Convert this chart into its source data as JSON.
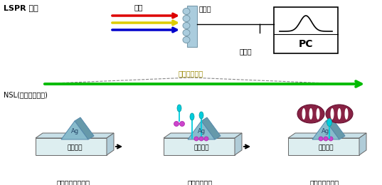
{
  "bg_color": "#ffffff",
  "top_label": "LSPR 原理",
  "nsl_label": "NSL(纳米球面光刻)",
  "guangyuan_label": "光源",
  "chuangan_label": "传感层",
  "tanzhen_label": "探测器",
  "pc_label": "PC",
  "zhizuo_label": "传感层的制作",
  "step1_label": "纳米粒子阵列组装",
  "step2_label": "生物分子活化",
  "step3_label": "待测分子的结合",
  "ag_label": "Ag",
  "boli_label": "玻璃基底",
  "red_line_color": "#dd0000",
  "yellow_line_color": "#ddcc00",
  "blue_line_color": "#0000cc",
  "green_arrow_color": "#00bb00",
  "cyan_color": "#00ccdd",
  "magenta_color": "#cc44cc",
  "dark_red_color": "#882244",
  "ag_fill": "#88bbcc",
  "sensor_fill": "#aaccdd",
  "glass_face": "#ddeef0",
  "glass_top": "#c8e0e8",
  "glass_side": "#b0ccd8",
  "dashed_color": "#888888"
}
